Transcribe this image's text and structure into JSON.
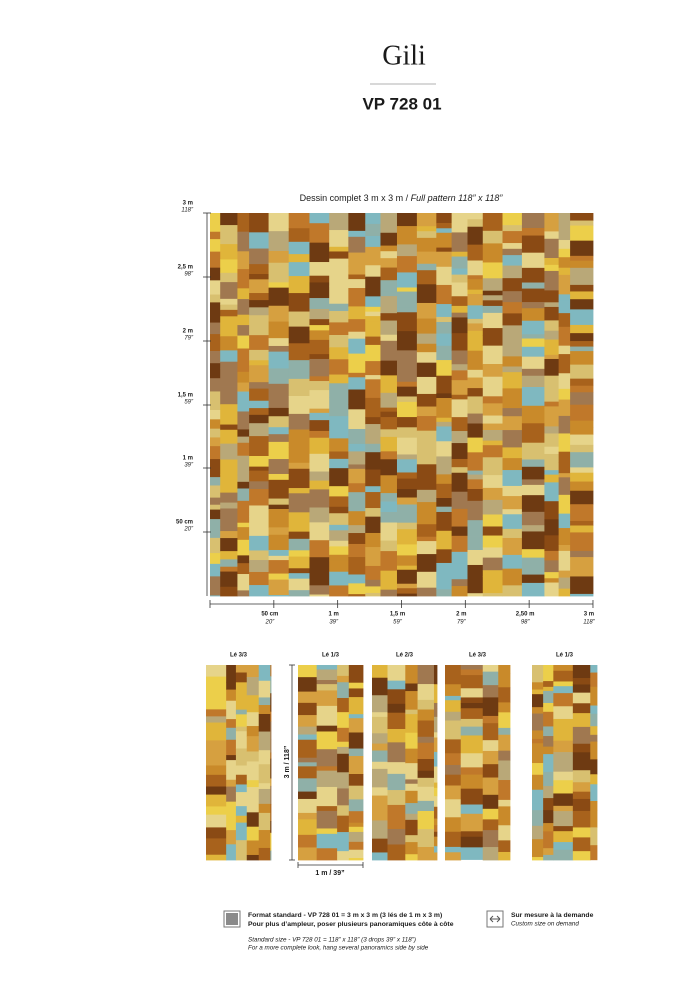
{
  "header": {
    "title": "Gili",
    "reference": "VP 728 01"
  },
  "full_pattern": {
    "caption_fr": "Dessin complet 3 m x 3 m / ",
    "caption_en": "Full pattern 118” x 118”",
    "y_ruler": [
      {
        "metric": "3 m",
        "imperial": "118”"
      },
      {
        "metric": "2,5 m",
        "imperial": "98”"
      },
      {
        "metric": "2 m",
        "imperial": "79”"
      },
      {
        "metric": "1,5 m",
        "imperial": "59”"
      },
      {
        "metric": "1 m",
        "imperial": "39”"
      },
      {
        "metric": "50 cm",
        "imperial": "20”"
      }
    ],
    "x_ruler": [
      {
        "metric": "50 cm",
        "imperial": "20”"
      },
      {
        "metric": "1 m",
        "imperial": "39”"
      },
      {
        "metric": "1,5 m",
        "imperial": "59”"
      },
      {
        "metric": "2 m",
        "imperial": "79”"
      },
      {
        "metric": "2,50 m",
        "imperial": "98”"
      },
      {
        "metric": "3 m",
        "imperial": "118”"
      }
    ]
  },
  "panels": {
    "labels": [
      "Lé 3/3",
      "Lé 1/3",
      "Lé 2/3",
      "Lé 3/3",
      "Lé 1/3"
    ],
    "height": "3 m / 118”",
    "width": "1 m / 39”"
  },
  "footer": {
    "standard_fr": "Format standard - VP 728 01 = 3 m x 3 m (3 lés de 1 m x 3 m)",
    "more_fr": "Pour plus d’ampleur, poser plusieurs panoramiques côte à côte",
    "standard_en": "Standard size - VP 728 01 = 118” x 118” (3 drops 39” x 118”)",
    "more_en": "For a more complete look, hang several panoramics side by side",
    "custom_fr": "Sur mesure à la demande",
    "custom_en": "Custom size on demand"
  }
}
